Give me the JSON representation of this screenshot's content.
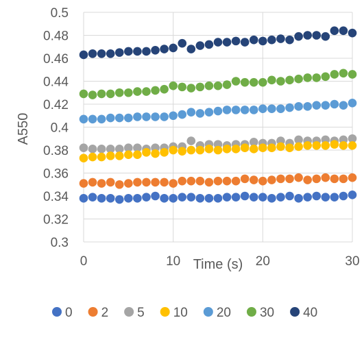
{
  "chart_data": {
    "type": "scatter",
    "xlabel": "Time (s)",
    "ylabel": "A550",
    "xlim": [
      0,
      30
    ],
    "ylim": [
      0.3,
      0.5
    ],
    "x_ticks": [
      0,
      10,
      20,
      30
    ],
    "y_ticks": [
      0.3,
      0.32,
      0.34,
      0.36,
      0.38,
      0.4,
      0.42,
      0.44,
      0.46,
      0.48,
      0.5
    ],
    "grid": "vertical and horizontal major gridlines",
    "legend_position": "bottom",
    "x": [
      0,
      1,
      2,
      3,
      4,
      5,
      6,
      7,
      8,
      9,
      10,
      11,
      12,
      13,
      14,
      15,
      16,
      17,
      18,
      19,
      20,
      21,
      22,
      23,
      24,
      25,
      26,
      27,
      28,
      29,
      30
    ],
    "series": [
      {
        "name": "0",
        "color": "#4472C4",
        "values": [
          0.338,
          0.339,
          0.338,
          0.338,
          0.337,
          0.338,
          0.338,
          0.339,
          0.34,
          0.338,
          0.338,
          0.339,
          0.339,
          0.338,
          0.338,
          0.338,
          0.339,
          0.339,
          0.34,
          0.339,
          0.339,
          0.338,
          0.339,
          0.34,
          0.338,
          0.339,
          0.34,
          0.339,
          0.339,
          0.34,
          0.341
        ]
      },
      {
        "name": "2",
        "color": "#ED7D31",
        "values": [
          0.351,
          0.352,
          0.351,
          0.352,
          0.35,
          0.351,
          0.352,
          0.352,
          0.352,
          0.352,
          0.351,
          0.353,
          0.353,
          0.353,
          0.352,
          0.353,
          0.353,
          0.353,
          0.355,
          0.354,
          0.353,
          0.354,
          0.355,
          0.355,
          0.356,
          0.354,
          0.355,
          0.356,
          0.355,
          0.355,
          0.356
        ]
      },
      {
        "name": "5",
        "color": "#A5A5A5",
        "values": [
          0.382,
          0.381,
          0.381,
          0.381,
          0.381,
          0.382,
          0.382,
          0.381,
          0.382,
          0.382,
          0.383,
          0.383,
          0.388,
          0.384,
          0.385,
          0.385,
          0.384,
          0.385,
          0.385,
          0.387,
          0.386,
          0.386,
          0.388,
          0.386,
          0.389,
          0.388,
          0.388,
          0.389,
          0.388,
          0.389,
          0.39
        ]
      },
      {
        "name": "10",
        "color": "#FFC000",
        "values": [
          0.373,
          0.374,
          0.374,
          0.375,
          0.375,
          0.376,
          0.376,
          0.378,
          0.377,
          0.378,
          0.38,
          0.379,
          0.38,
          0.38,
          0.381,
          0.38,
          0.381,
          0.381,
          0.382,
          0.381,
          0.382,
          0.382,
          0.383,
          0.382,
          0.383,
          0.384,
          0.384,
          0.384,
          0.385,
          0.384,
          0.384
        ]
      },
      {
        "name": "20",
        "color": "#5B9BD5",
        "values": [
          0.407,
          0.407,
          0.407,
          0.408,
          0.408,
          0.408,
          0.409,
          0.409,
          0.409,
          0.409,
          0.41,
          0.411,
          0.413,
          0.412,
          0.413,
          0.414,
          0.415,
          0.415,
          0.415,
          0.415,
          0.416,
          0.416,
          0.416,
          0.417,
          0.418,
          0.418,
          0.419,
          0.419,
          0.42,
          0.419,
          0.421
        ]
      },
      {
        "name": "30",
        "color": "#70AD47",
        "values": [
          0.429,
          0.428,
          0.429,
          0.429,
          0.43,
          0.43,
          0.431,
          0.431,
          0.432,
          0.433,
          0.436,
          0.435,
          0.434,
          0.435,
          0.436,
          0.436,
          0.437,
          0.44,
          0.439,
          0.439,
          0.439,
          0.441,
          0.44,
          0.441,
          0.442,
          0.443,
          0.443,
          0.444,
          0.446,
          0.447,
          0.446
        ]
      },
      {
        "name": "40",
        "color": "#264478",
        "values": [
          0.463,
          0.464,
          0.464,
          0.464,
          0.465,
          0.466,
          0.466,
          0.466,
          0.467,
          0.468,
          0.469,
          0.473,
          0.468,
          0.471,
          0.472,
          0.474,
          0.474,
          0.475,
          0.474,
          0.476,
          0.475,
          0.476,
          0.477,
          0.476,
          0.479,
          0.48,
          0.48,
          0.479,
          0.484,
          0.484,
          0.482
        ]
      }
    ]
  }
}
